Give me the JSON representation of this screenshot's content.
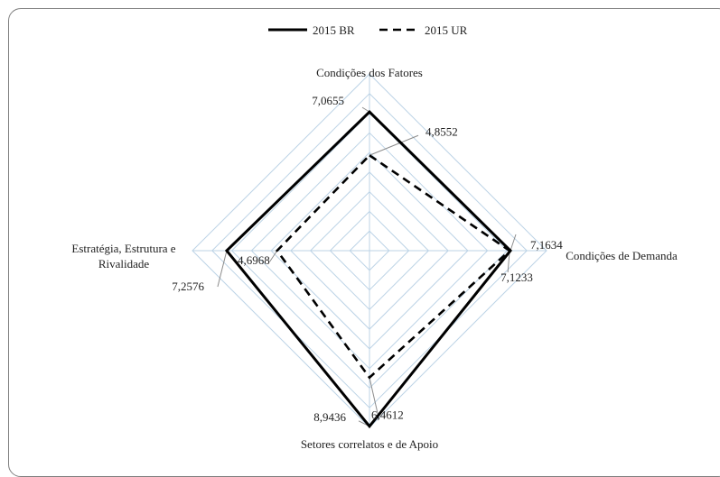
{
  "chart_data": {
    "type": "radar",
    "axes": [
      "Condições dos Fatores",
      "Condições de Demanda",
      "Setores correlatos e de Apoio",
      "Estratégia, Estrutura e Rivalidade"
    ],
    "axis_label_lines": [
      [
        "Condições dos Fatores"
      ],
      [
        "Condições de Demanda"
      ],
      [
        "Setores correlatos e de Apoio"
      ],
      [
        "Estratégia, Estrutura e",
        "Rivalidade"
      ]
    ],
    "series": [
      {
        "name": "2015 BR",
        "values": [
          7.0655,
          7.1634,
          8.9436,
          7.2576
        ],
        "labels": [
          "7,0655",
          "7,1634",
          "8,9436",
          "7,2576"
        ],
        "style": "solid",
        "color": "#000000"
      },
      {
        "name": "2015 UR",
        "values": [
          4.8552,
          7.1233,
          6.4612,
          4.6968
        ],
        "labels": [
          "4,8552",
          "7,1233",
          "6,4612",
          "4,6968"
        ],
        "style": "dashed",
        "color": "#000000"
      }
    ],
    "rmax": 9,
    "grid_step": 1,
    "grid_color": "#bcd3e6",
    "leader_color": "#8c8c8c",
    "legend_position": "top"
  }
}
